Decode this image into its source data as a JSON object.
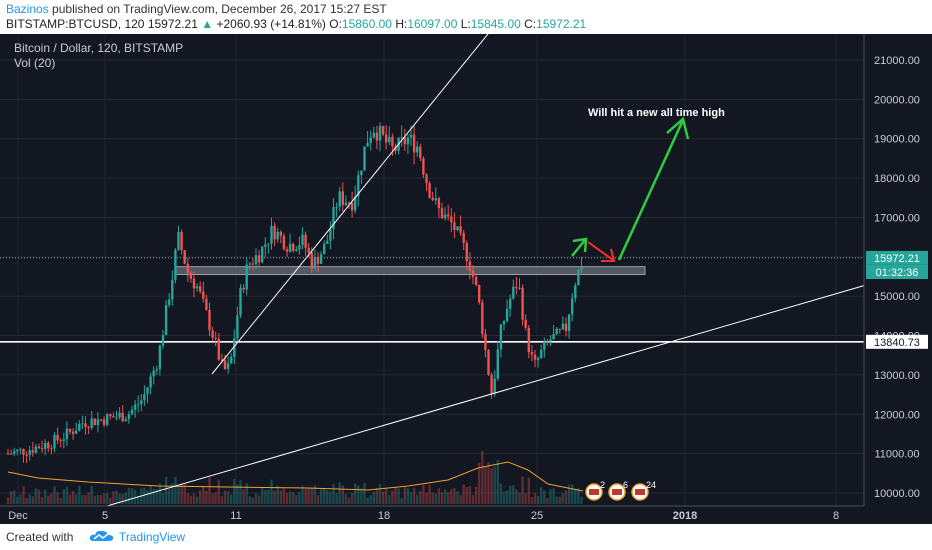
{
  "header": {
    "author": "Bazinos",
    "published_text": "published on TradingView.com, December 26, 2017 15:27 EST",
    "symbol": "BITSTAMP:BTCUSD, 120",
    "last": "15972.21",
    "change": "+2060.93 (+14.81%)",
    "o_label": "O:",
    "o": "15860.00",
    "h_label": "H:",
    "h": "16097.00",
    "l_label": "L:",
    "l": "15845.00",
    "c_label": "C:",
    "c": "15972.21"
  },
  "legend": {
    "title": "Bitcoin / Dollar, 120, BITSTAMP",
    "vol": "Vol (20)"
  },
  "annotation": "Will hit a new all time high",
  "price_tag": "15972.21",
  "countdown": "01:32:36",
  "level_tag": "13840.73",
  "event_badges": [
    "2",
    "6",
    "24"
  ],
  "footer": {
    "created": "Created with",
    "brand": "TradingView"
  },
  "colors": {
    "background": "#131722",
    "up": "#26a69a",
    "down": "#ef5350",
    "drawing": "#ffffff",
    "arrow_green": "#2ecc40",
    "arrow_red": "#ff2d2d",
    "volume_ma": "#f0a030"
  },
  "chart_data": {
    "type": "candlestick",
    "ylim": [
      9800,
      21500
    ],
    "y_ticks": [
      10000,
      11000,
      12000,
      13000,
      14000,
      15000,
      16000,
      17000,
      18000,
      19000,
      20000,
      21000
    ],
    "y_tick_labels": [
      "10000.00",
      "11000.00",
      "12000.00",
      "13000.00",
      "14000.00",
      "15000.00",
      "16000.00",
      "17000.00",
      "18000.00",
      "19000.00",
      "20000.00",
      "21000.00"
    ],
    "x_tick_labels": [
      "Dec",
      "5",
      "11",
      "18",
      "25",
      "2018",
      "8"
    ],
    "close_path": [
      [
        0,
        11000
      ],
      [
        20,
        11100
      ],
      [
        45,
        11300
      ],
      [
        60,
        11500
      ],
      [
        75,
        11800
      ],
      [
        100,
        11900
      ],
      [
        120,
        12000
      ],
      [
        135,
        12400
      ],
      [
        150,
        13400
      ],
      [
        165,
        15600
      ],
      [
        170,
        16500
      ],
      [
        180,
        15600
      ],
      [
        190,
        15200
      ],
      [
        205,
        14000
      ],
      [
        215,
        13100
      ],
      [
        222,
        13200
      ],
      [
        232,
        15000
      ],
      [
        240,
        15800
      ],
      [
        252,
        16100
      ],
      [
        265,
        16700
      ],
      [
        280,
        16300
      ],
      [
        295,
        16400
      ],
      [
        305,
        15800
      ],
      [
        318,
        16300
      ],
      [
        330,
        17500
      ],
      [
        345,
        17400
      ],
      [
        358,
        18900
      ],
      [
        365,
        19300
      ],
      [
        372,
        19100
      ],
      [
        385,
        18700
      ],
      [
        400,
        19000
      ],
      [
        410,
        18800
      ],
      [
        420,
        17800
      ],
      [
        430,
        17200
      ],
      [
        445,
        16800
      ],
      [
        460,
        16000
      ],
      [
        470,
        15000
      ],
      [
        478,
        13500
      ],
      [
        484,
        12500
      ],
      [
        492,
        14000
      ],
      [
        500,
        14800
      ],
      [
        510,
        15400
      ],
      [
        518,
        14000
      ],
      [
        526,
        13200
      ],
      [
        534,
        13600
      ],
      [
        542,
        13900
      ],
      [
        550,
        14000
      ],
      [
        558,
        14200
      ],
      [
        566,
        15300
      ],
      [
        576,
        16000
      ]
    ],
    "support_zone": [
      15550,
      15750
    ],
    "horizontal_level": 13840.73,
    "last_price": 15972.21
  }
}
